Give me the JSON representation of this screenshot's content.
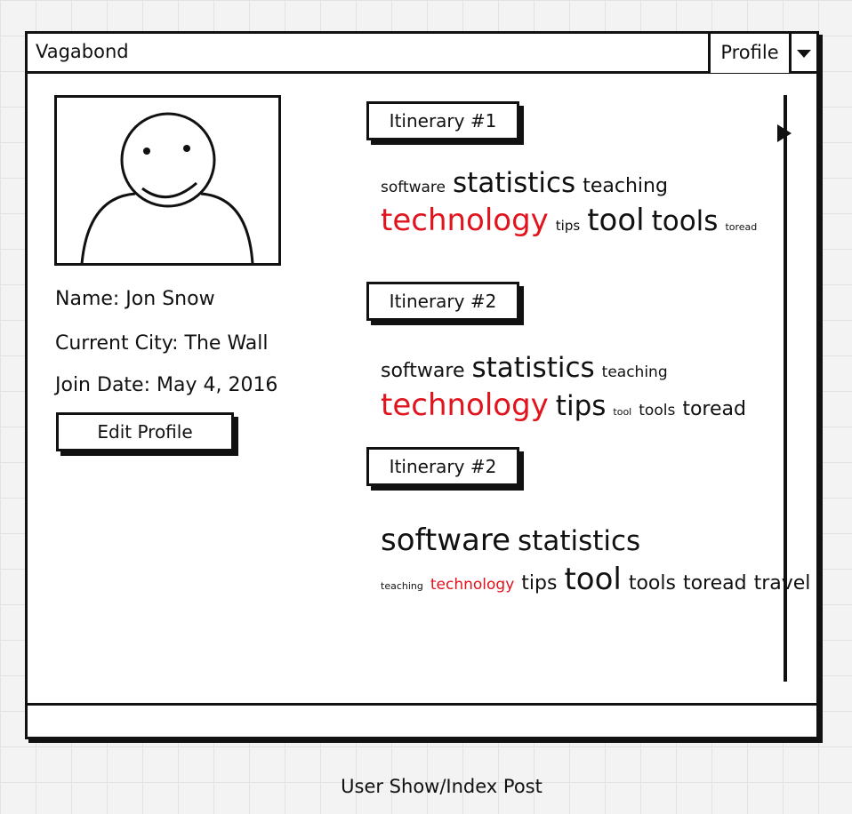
{
  "window": {
    "title": "Vagabond",
    "profile_button": "Profile"
  },
  "profile": {
    "name_line": "Name: Jon Snow",
    "city_line": "Current City: The Wall",
    "join_line": "Join Date: May 4, 2016",
    "edit_button": "Edit Profile"
  },
  "itineraries": [
    {
      "label": "Itinerary #1",
      "tags": [
        {
          "text": "software",
          "size": "small"
        },
        {
          "text": "statistics",
          "size": "large"
        },
        {
          "text": "teaching",
          "size": "medium"
        },
        {
          "text": "technology",
          "size": "xlarge",
          "highlight": true
        },
        {
          "text": "tips",
          "size": "xsmall"
        },
        {
          "text": "tool",
          "size": "xlarge"
        },
        {
          "text": "tools",
          "size": "large"
        },
        {
          "text": "toread",
          "size": "tiny"
        }
      ]
    },
    {
      "label": "Itinerary #2",
      "tags": [
        {
          "text": "software",
          "size": "medium"
        },
        {
          "text": "statistics",
          "size": "large"
        },
        {
          "text": "teaching",
          "size": "small"
        },
        {
          "text": "technology",
          "size": "xlarge",
          "highlight": true
        },
        {
          "text": "tips",
          "size": "large"
        },
        {
          "text": "tool",
          "size": "tiny"
        },
        {
          "text": "tools",
          "size": "small"
        },
        {
          "text": "toread",
          "size": "medium"
        }
      ]
    },
    {
      "label": "Itinerary #2",
      "tags": [
        {
          "text": "software",
          "size": "xlarge"
        },
        {
          "text": "statistics",
          "size": "large"
        },
        {
          "text": "teaching",
          "size": "tiny"
        },
        {
          "text": "technology",
          "size": "small",
          "highlight": true
        },
        {
          "text": "tips",
          "size": "medium"
        },
        {
          "text": "tool",
          "size": "xlarge"
        },
        {
          "text": "tools",
          "size": "medium"
        },
        {
          "text": "toread",
          "size": "medium"
        },
        {
          "text": "travel",
          "size": "medium"
        }
      ]
    }
  ],
  "caption": "User Show/Index Post",
  "colors": {
    "highlight": "#e1131d",
    "ink": "#111111"
  },
  "icons": {
    "dropdown": "chevron-down-icon",
    "avatar": "user-avatar-icon"
  }
}
